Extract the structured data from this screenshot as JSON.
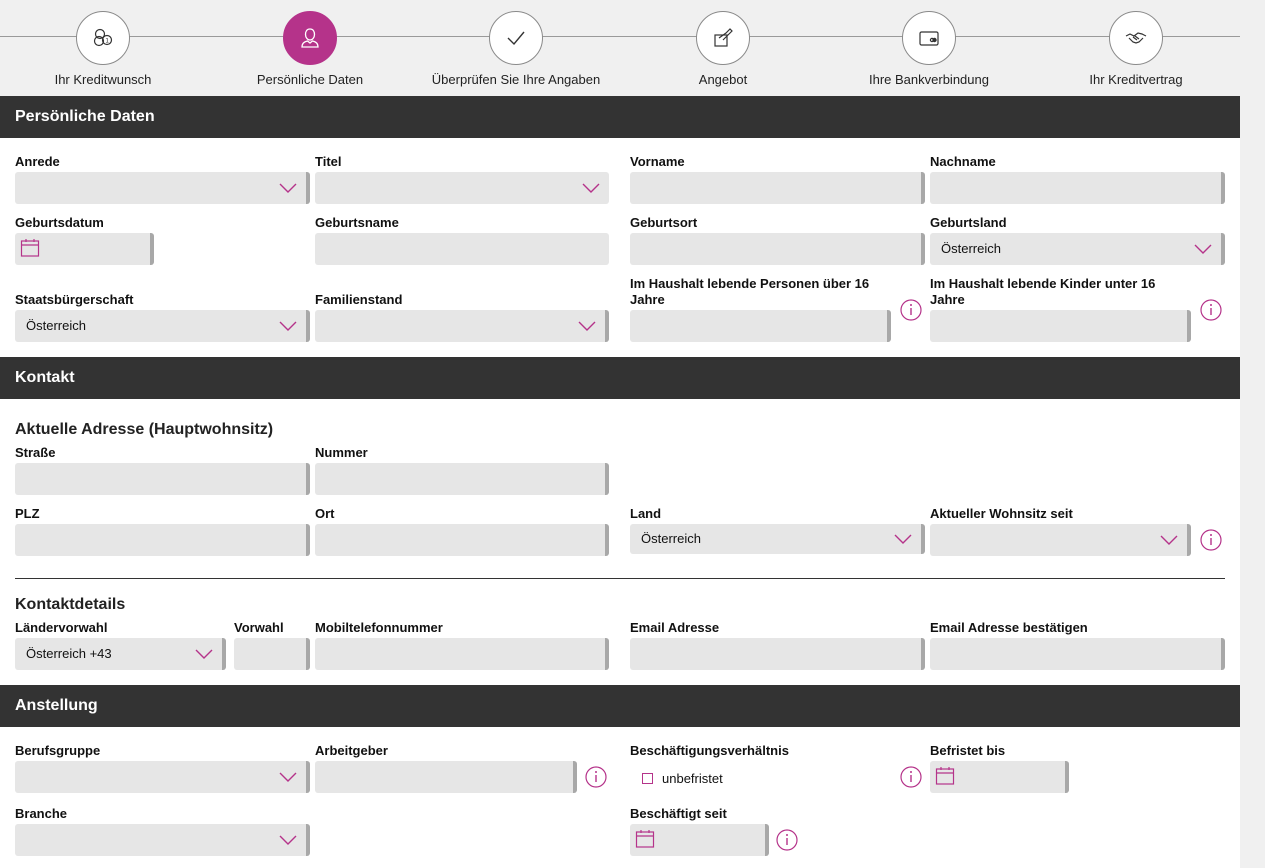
{
  "stepper": [
    {
      "label": "Ihr Kreditwunsch",
      "icon": "coins-icon",
      "active": false
    },
    {
      "label": "Persönliche Daten",
      "icon": "person-icon",
      "active": true
    },
    {
      "label": "Überprüfen Sie Ihre Angaben",
      "icon": "checkmark-icon",
      "active": false
    },
    {
      "label": "Angebot",
      "icon": "offer-hand-icon",
      "active": false
    },
    {
      "label": "Ihre Bankverbindung",
      "icon": "bank-card-icon",
      "active": false
    },
    {
      "label": "Ihr Kreditvertrag",
      "icon": "handshake-icon",
      "active": false
    }
  ],
  "colors": {
    "accent": "#b5338a",
    "header_bg": "#333333",
    "field_bg": "#e6e6e6"
  },
  "personal": {
    "title": "Persönliche Daten",
    "anrede": "Anrede",
    "titel": "Titel",
    "vorname": "Vorname",
    "nachname": "Nachname",
    "geburtsdatum": "Geburtsdatum",
    "geburtsname": "Geburtsname",
    "geburtsort": "Geburtsort",
    "geburtsland": "Geburtsland",
    "geburtsland_value": "Österreich",
    "staatsbuergerschaft": "Staatsbürgerschaft",
    "staatsbuergerschaft_value": "Österreich",
    "familienstand": "Familienstand",
    "personen_line1": "Im Haushalt lebende Personen über 16",
    "personen_line2": "Jahre",
    "kinder_line1": "Im Haushalt lebende Kinder unter 16",
    "kinder_line2": "Jahre"
  },
  "contact": {
    "title": "Kontakt",
    "address_title": "Aktuelle Adresse (Hauptwohnsitz)",
    "strasse": "Straße",
    "nummer": "Nummer",
    "plz": "PLZ",
    "ort": "Ort",
    "land": "Land",
    "land_value": "Österreich",
    "wohnsitz_seit": "Aktueller Wohnsitz seit",
    "details_title": "Kontaktdetails",
    "laendervorwahl": "Ländervorwahl",
    "laendervorwahl_value": "Österreich +43",
    "vorwahl": "Vorwahl",
    "mobil": "Mobiltelefonnummer",
    "email": "Email Adresse",
    "email_confirm": "Email Adresse bestätigen"
  },
  "employment": {
    "title": "Anstellung",
    "berufsgruppe": "Berufsgruppe",
    "arbeitgeber": "Arbeitgeber",
    "verhaeltnis": "Beschäftigungsverhältnis",
    "unbefristet": "unbefristet",
    "befristet_bis": "Befristet bis",
    "branche": "Branche",
    "beschaeftigt_seit": "Beschäftigt seit"
  }
}
